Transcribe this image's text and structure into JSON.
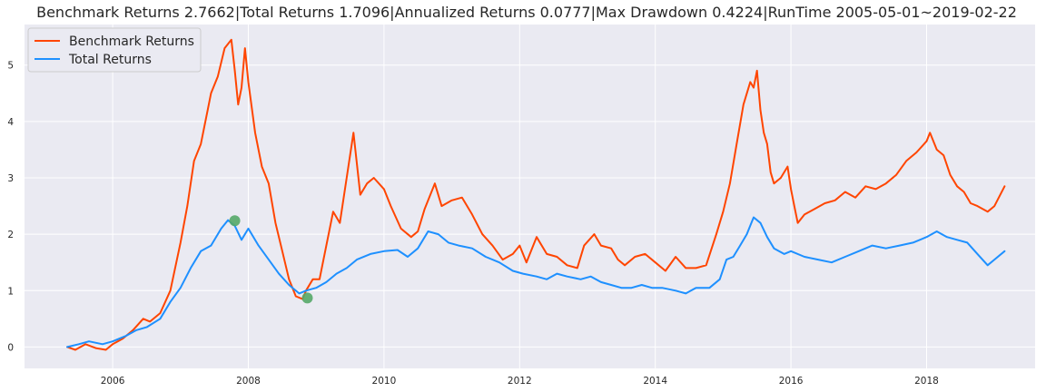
{
  "chart_data": {
    "type": "line",
    "title": "Benchmark Returns 2.7662|Total Returns 1.7096|Annualized Returns 0.0777|Max Drawdown 0.4224|RunTime 2005-05-01~2019-02-22",
    "xlabel": "",
    "ylabel": "",
    "xlim": [
      2004.7,
      2019.6
    ],
    "ylim": [
      -0.38,
      5.72
    ],
    "x_ticks": [
      2006,
      2008,
      2010,
      2012,
      2014,
      2016,
      2018
    ],
    "x_tick_labels": [
      "2006",
      "2008",
      "2010",
      "2012",
      "2014",
      "2016",
      "2018"
    ],
    "y_ticks": [
      0,
      1,
      2,
      3,
      4,
      5
    ],
    "y_tick_labels": [
      "0",
      "1",
      "2",
      "3",
      "4",
      "5"
    ],
    "grid": true,
    "legend_position": "top-left",
    "background_color": "#EAEAF2",
    "series": [
      {
        "name": "Benchmark Returns",
        "color": "#FF4500",
        "x": [
          2005.33,
          2005.45,
          2005.6,
          2005.75,
          2005.9,
          2006.0,
          2006.15,
          2006.3,
          2006.45,
          2006.55,
          2006.7,
          2006.85,
          2007.0,
          2007.1,
          2007.2,
          2007.3,
          2007.4,
          2007.45,
          2007.55,
          2007.65,
          2007.75,
          2007.8,
          2007.85,
          2007.9,
          2007.95,
          2008.0,
          2008.1,
          2008.2,
          2008.3,
          2008.4,
          2008.5,
          2008.6,
          2008.7,
          2008.8,
          2008.85,
          2008.95,
          2009.05,
          2009.15,
          2009.25,
          2009.35,
          2009.45,
          2009.55,
          2009.65,
          2009.75,
          2009.85,
          2010.0,
          2010.1,
          2010.25,
          2010.4,
          2010.5,
          2010.6,
          2010.75,
          2010.85,
          2011.0,
          2011.15,
          2011.3,
          2011.45,
          2011.6,
          2011.75,
          2011.9,
          2012.0,
          2012.1,
          2012.25,
          2012.4,
          2012.55,
          2012.7,
          2012.85,
          2012.95,
          2013.1,
          2013.2,
          2013.35,
          2013.45,
          2013.55,
          2013.7,
          2013.85,
          2014.0,
          2014.15,
          2014.3,
          2014.45,
          2014.6,
          2014.75,
          2014.9,
          2015.0,
          2015.1,
          2015.2,
          2015.3,
          2015.4,
          2015.45,
          2015.5,
          2015.55,
          2015.6,
          2015.65,
          2015.7,
          2015.75,
          2015.85,
          2015.95,
          2016.0,
          2016.05,
          2016.1,
          2016.2,
          2016.35,
          2016.5,
          2016.65,
          2016.8,
          2016.95,
          2017.1,
          2017.25,
          2017.4,
          2017.55,
          2017.7,
          2017.85,
          2018.0,
          2018.05,
          2018.15,
          2018.25,
          2018.35,
          2018.45,
          2018.55,
          2018.65,
          2018.75,
          2018.9,
          2019.0,
          2019.15
        ],
        "values": [
          0.0,
          -0.05,
          0.05,
          -0.02,
          -0.05,
          0.05,
          0.15,
          0.3,
          0.5,
          0.45,
          0.6,
          1.0,
          1.85,
          2.5,
          3.3,
          3.6,
          4.2,
          4.5,
          4.8,
          5.3,
          5.45,
          4.9,
          4.3,
          4.6,
          5.3,
          4.7,
          3.8,
          3.2,
          2.9,
          2.2,
          1.7,
          1.2,
          0.9,
          0.85,
          1.0,
          1.2,
          1.2,
          1.8,
          2.4,
          2.2,
          3.0,
          3.8,
          2.7,
          2.9,
          3.0,
          2.8,
          2.5,
          2.1,
          1.95,
          2.05,
          2.45,
          2.9,
          2.5,
          2.6,
          2.65,
          2.35,
          2.0,
          1.8,
          1.55,
          1.65,
          1.8,
          1.5,
          1.95,
          1.65,
          1.6,
          1.45,
          1.4,
          1.8,
          2.0,
          1.8,
          1.75,
          1.55,
          1.45,
          1.6,
          1.65,
          1.5,
          1.35,
          1.6,
          1.4,
          1.4,
          1.45,
          2.0,
          2.4,
          2.9,
          3.6,
          4.3,
          4.7,
          4.6,
          4.9,
          4.2,
          3.8,
          3.6,
          3.1,
          2.9,
          3.0,
          3.2,
          2.8,
          2.5,
          2.2,
          2.35,
          2.45,
          2.55,
          2.6,
          2.75,
          2.65,
          2.85,
          2.8,
          2.9,
          3.05,
          3.3,
          3.45,
          3.65,
          3.8,
          3.5,
          3.4,
          3.05,
          2.85,
          2.75,
          2.55,
          2.5,
          2.4,
          2.5,
          2.85
        ]
      },
      {
        "name": "Total Returns",
        "color": "#1E90FF",
        "x": [
          2005.33,
          2005.5,
          2005.65,
          2005.85,
          2006.0,
          2006.2,
          2006.35,
          2006.5,
          2006.7,
          2006.85,
          2007.0,
          2007.15,
          2007.3,
          2007.45,
          2007.6,
          2007.7,
          2007.8,
          2007.9,
          2008.0,
          2008.15,
          2008.3,
          2008.45,
          2008.6,
          2008.75,
          2008.85,
          2009.0,
          2009.15,
          2009.3,
          2009.45,
          2009.6,
          2009.8,
          2010.0,
          2010.2,
          2010.35,
          2010.5,
          2010.65,
          2010.8,
          2010.95,
          2011.1,
          2011.3,
          2011.5,
          2011.7,
          2011.9,
          2012.05,
          2012.25,
          2012.4,
          2012.55,
          2012.7,
          2012.9,
          2013.05,
          2013.2,
          2013.35,
          2013.5,
          2013.65,
          2013.8,
          2013.95,
          2014.1,
          2014.3,
          2014.45,
          2014.6,
          2014.8,
          2014.95,
          2015.05,
          2015.15,
          2015.25,
          2015.35,
          2015.45,
          2015.55,
          2015.65,
          2015.75,
          2015.9,
          2016.0,
          2016.2,
          2016.4,
          2016.6,
          2016.8,
          2017.0,
          2017.2,
          2017.4,
          2017.6,
          2017.8,
          2018.0,
          2018.15,
          2018.3,
          2018.45,
          2018.6,
          2018.75,
          2018.9,
          2019.0,
          2019.15
        ],
        "values": [
          0.0,
          0.05,
          0.1,
          0.05,
          0.1,
          0.2,
          0.3,
          0.35,
          0.5,
          0.8,
          1.05,
          1.4,
          1.7,
          1.8,
          2.1,
          2.25,
          2.15,
          1.9,
          2.1,
          1.8,
          1.55,
          1.3,
          1.1,
          0.95,
          1.0,
          1.05,
          1.15,
          1.3,
          1.4,
          1.55,
          1.65,
          1.7,
          1.72,
          1.6,
          1.75,
          2.05,
          2.0,
          1.85,
          1.8,
          1.75,
          1.6,
          1.5,
          1.35,
          1.3,
          1.25,
          1.2,
          1.3,
          1.25,
          1.2,
          1.25,
          1.15,
          1.1,
          1.05,
          1.05,
          1.1,
          1.05,
          1.05,
          1.0,
          0.95,
          1.05,
          1.05,
          1.2,
          1.55,
          1.6,
          1.8,
          2.0,
          2.3,
          2.2,
          1.95,
          1.75,
          1.65,
          1.7,
          1.6,
          1.55,
          1.5,
          1.6,
          1.7,
          1.8,
          1.75,
          1.8,
          1.85,
          1.95,
          2.05,
          1.95,
          1.9,
          1.85,
          1.65,
          1.45,
          1.55,
          1.7
        ]
      }
    ],
    "markers": [
      {
        "x": 2007.8,
        "y": 2.24,
        "color": "#55A868"
      },
      {
        "x": 2008.87,
        "y": 0.87,
        "color": "#55A868"
      }
    ]
  }
}
